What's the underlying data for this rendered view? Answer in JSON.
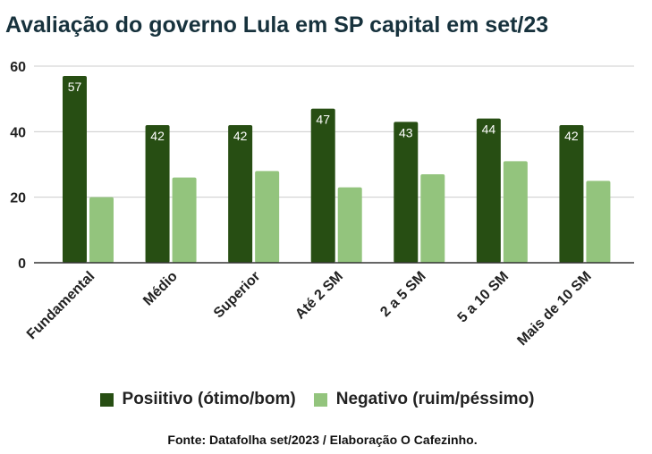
{
  "title": "Avaliação do governo Lula em SP capital em set/23",
  "source": "Fonte: Datafolha set/2023 / Elaboração O Cafezinho.",
  "colors": {
    "positive": "#274e13",
    "negative": "#93c47d",
    "grid": "#cccccc",
    "axis": "#333333"
  },
  "chart_data": {
    "type": "bar",
    "title": "Avaliação do governo Lula em SP capital em set/23",
    "xlabel": "",
    "ylabel": "",
    "categories": [
      "Fundamental",
      "Médio",
      "Superior",
      "Até 2 SM",
      "2 a 5 SM",
      "5 a 10 SM",
      "Mais de 10 SM"
    ],
    "series": [
      {
        "name": "Posiitivo (ótimo/bom)",
        "values": [
          57,
          42,
          42,
          47,
          43,
          44,
          42
        ],
        "color": "#274e13",
        "data_labels": true
      },
      {
        "name": "Negativo (ruim/péssimo)",
        "values": [
          20,
          26,
          28,
          23,
          27,
          31,
          25
        ],
        "color": "#93c47d",
        "data_labels": false
      }
    ],
    "yticks": [
      0,
      20,
      40,
      60
    ],
    "ylim": [
      0,
      60
    ],
    "grid": true,
    "legend_position": "bottom"
  }
}
